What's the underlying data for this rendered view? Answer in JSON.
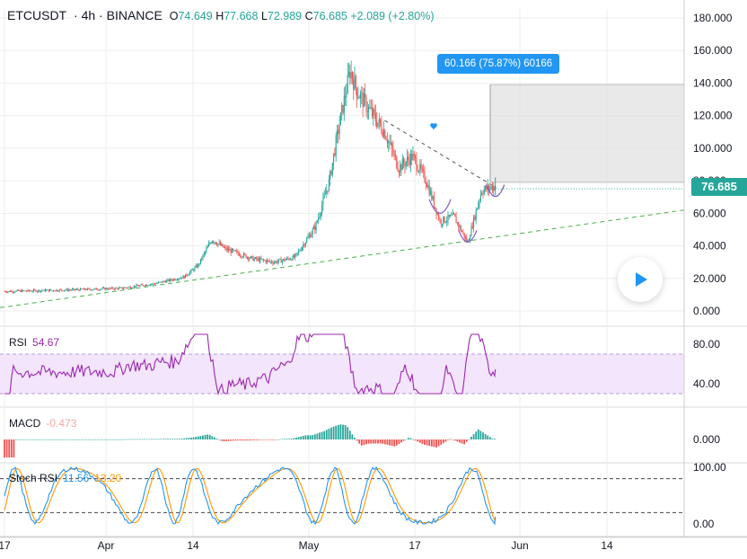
{
  "header": {
    "symbol": "ETCUSDT",
    "interval": "4h",
    "exchange": "BINANCE",
    "open_label": "O",
    "open": "74.649",
    "high_label": "H",
    "high": "77.668",
    "low_label": "L",
    "low": "72.989",
    "close_label": "C",
    "close": "76.685",
    "change": "+2.089 (+2.80%)"
  },
  "last_price": "76.685",
  "measure": {
    "label": "60.166 (75.87%) 60166"
  },
  "colors": {
    "up": "#26a69a",
    "down": "#ef5350",
    "rsi": "#9c27b0",
    "rsi_band": "#f3e5fb",
    "stoch_k": "#2196f3",
    "stoch_d": "#ff9800",
    "trend": "#4caf50",
    "grid": "#eeeeee",
    "measure": "#2196f3"
  },
  "icons": {
    "play": "play-icon",
    "heart": "heart-icon"
  },
  "chart_data": [
    {
      "type": "candlestick",
      "x_ticks": [
        "17",
        "Apr",
        "14",
        "May",
        "17",
        "Jun",
        "14"
      ],
      "y_ticks": [
        "0.000",
        "20.000",
        "40.000",
        "60.000",
        "80.000",
        "100.000",
        "120.000",
        "140.000",
        "160.000",
        "180.000"
      ],
      "ylim": [
        0,
        180
      ],
      "price_path": [
        {
          "x": "Mar 17",
          "y": 12
        },
        {
          "x": "Mar 27",
          "y": 13
        },
        {
          "x": "Apr 3",
          "y": 14
        },
        {
          "x": "Apr 8",
          "y": 17
        },
        {
          "x": "Apr 12",
          "y": 21
        },
        {
          "x": "Apr 14",
          "y": 28
        },
        {
          "x": "Apr 16",
          "y": 44
        },
        {
          "x": "Apr 18",
          "y": 38
        },
        {
          "x": "Apr 22",
          "y": 32
        },
        {
          "x": "Apr 25",
          "y": 30
        },
        {
          "x": "Apr 28",
          "y": 33
        },
        {
          "x": "May 1",
          "y": 52
        },
        {
          "x": "May 3",
          "y": 80
        },
        {
          "x": "May 4",
          "y": 105
        },
        {
          "x": "May 6",
          "y": 148
        },
        {
          "x": "May 7",
          "y": 135
        },
        {
          "x": "May 9",
          "y": 122
        },
        {
          "x": "May 11",
          "y": 110
        },
        {
          "x": "May 13",
          "y": 88
        },
        {
          "x": "May 15",
          "y": 95
        },
        {
          "x": "May 17",
          "y": 80
        },
        {
          "x": "May 19",
          "y": 55
        },
        {
          "x": "May 21",
          "y": 58
        },
        {
          "x": "May 23",
          "y": 42
        },
        {
          "x": "May 24",
          "y": 58
        },
        {
          "x": "May 25",
          "y": 74
        },
        {
          "x": "May 27",
          "y": 76.685
        }
      ]
    },
    {
      "type": "line",
      "name": "RSI",
      "value": "54.67",
      "y_ticks": [
        "40.00",
        "80.00"
      ],
      "ylim": [
        25,
        95
      ],
      "band": [
        30,
        70
      ]
    },
    {
      "type": "bar",
      "name": "MACD",
      "value": "-0.473",
      "y_ticks": [
        "0.000"
      ]
    },
    {
      "type": "line",
      "name": "Stoch RSI",
      "k_value": "11.56",
      "d_value": "13.20",
      "y_ticks": [
        "0.00",
        "100.00"
      ],
      "ylim": [
        0,
        100
      ],
      "levels": [
        20,
        80
      ]
    }
  ]
}
